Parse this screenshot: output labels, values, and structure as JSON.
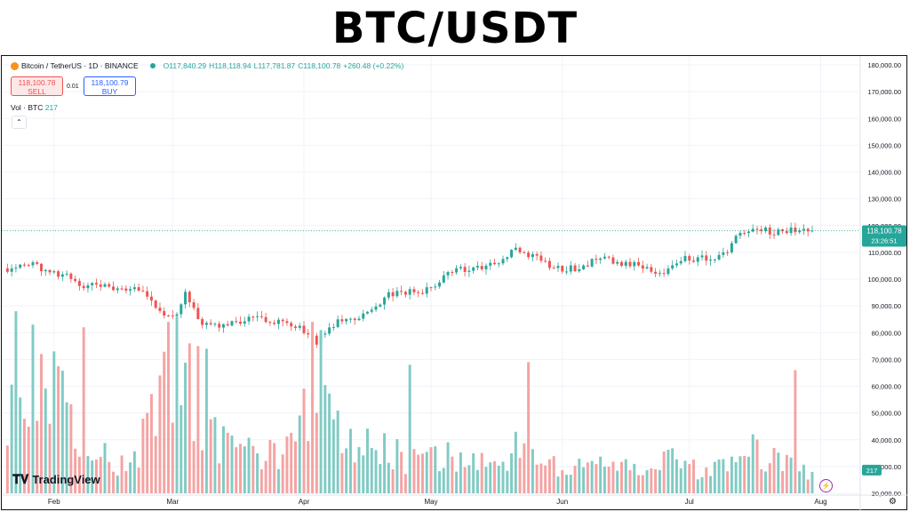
{
  "title": "BTC/USDT",
  "header": {
    "symbol": "Bitcoin / TetherUS · 1D · BINANCE",
    "open": "O117,840.29",
    "high": "H118,118.94",
    "low": "L117,781.87",
    "close": "C118,100.78",
    "change": "+260.48 (+0.22%)"
  },
  "trade": {
    "sell_price": "118,100.78",
    "sell_label": "SELL",
    "spread": "0.01",
    "buy_price": "118,100.79",
    "buy_label": "BUY"
  },
  "volume_label": {
    "name": "Vol · BTC",
    "value": "217"
  },
  "collapse_icon": "chevron-up",
  "branding": {
    "logo_text": "TradingView"
  },
  "price_tag": {
    "price": "118,100.78",
    "countdown": "23:26:51"
  },
  "volume_tag": "217",
  "colors": {
    "up": "#26a69a",
    "down": "#ef5350",
    "vol_up": "#80cbc4",
    "vol_down": "#f5a3a3",
    "accent": "#2962ff"
  },
  "chart_data": {
    "type": "candlestick",
    "title": "BTC/USDT",
    "y_axis": {
      "min": 20000,
      "max": 180000,
      "ticks": [
        "180,000.00",
        "170,000.00",
        "160,000.00",
        "150,000.00",
        "140,000.00",
        "130,000.00",
        "120,000.00",
        "110,000.00",
        "100,000.00",
        "90,000.00",
        "80,000.00",
        "70,000.00",
        "60,000.00",
        "50,000.00",
        "40,000.00",
        "30,000.00",
        "20,000.00"
      ]
    },
    "x_axis": {
      "labels": [
        {
          "label": "Feb",
          "day": 11
        },
        {
          "label": "Mar",
          "day": 39
        },
        {
          "label": "Apr",
          "day": 70
        },
        {
          "label": "May",
          "day": 100
        },
        {
          "label": "Jun",
          "day": 131
        },
        {
          "label": "Jul",
          "day": 161
        },
        {
          "label": "Aug",
          "day": 192
        }
      ],
      "start_date": "2025-01-21",
      "days_shown": 201
    },
    "last_price": 118100.78,
    "price_anchors": [
      {
        "day": 0,
        "price": 104000
      },
      {
        "day": 4,
        "price": 106000
      },
      {
        "day": 10,
        "price": 103000
      },
      {
        "day": 14,
        "price": 101000
      },
      {
        "day": 18,
        "price": 97500
      },
      {
        "day": 25,
        "price": 97000
      },
      {
        "day": 31,
        "price": 96000
      },
      {
        "day": 36,
        "price": 88000
      },
      {
        "day": 40,
        "price": 86000
      },
      {
        "day": 42,
        "price": 94000
      },
      {
        "day": 46,
        "price": 83000
      },
      {
        "day": 52,
        "price": 83000
      },
      {
        "day": 58,
        "price": 86000
      },
      {
        "day": 64,
        "price": 84000
      },
      {
        "day": 70,
        "price": 81000
      },
      {
        "day": 73,
        "price": 76500
      },
      {
        "day": 78,
        "price": 84000
      },
      {
        "day": 84,
        "price": 86000
      },
      {
        "day": 90,
        "price": 94000
      },
      {
        "day": 96,
        "price": 95500
      },
      {
        "day": 100,
        "price": 96000
      },
      {
        "day": 104,
        "price": 103000
      },
      {
        "day": 110,
        "price": 104000
      },
      {
        "day": 115,
        "price": 105000
      },
      {
        "day": 120,
        "price": 111000
      },
      {
        "day": 124,
        "price": 109000
      },
      {
        "day": 129,
        "price": 104000
      },
      {
        "day": 135,
        "price": 104000
      },
      {
        "day": 140,
        "price": 109000
      },
      {
        "day": 145,
        "price": 105500
      },
      {
        "day": 151,
        "price": 105000
      },
      {
        "day": 154,
        "price": 101000
      },
      {
        "day": 158,
        "price": 107000
      },
      {
        "day": 164,
        "price": 108000
      },
      {
        "day": 168,
        "price": 108500
      },
      {
        "day": 170,
        "price": 111000
      },
      {
        "day": 173,
        "price": 118000
      },
      {
        "day": 176,
        "price": 119500
      },
      {
        "day": 180,
        "price": 117500
      },
      {
        "day": 184,
        "price": 118300
      },
      {
        "day": 190,
        "price": 118100
      }
    ],
    "volume_anchors": [
      {
        "day": 0,
        "volume": 24000
      },
      {
        "day": 2,
        "volume": 48000
      },
      {
        "day": 4,
        "volume": 25000
      },
      {
        "day": 8,
        "volume": 28000
      },
      {
        "day": 13,
        "volume": 38000
      },
      {
        "day": 16,
        "volume": 16000
      },
      {
        "day": 20,
        "volume": 18000
      },
      {
        "day": 28,
        "volume": 10000
      },
      {
        "day": 33,
        "volume": 22000
      },
      {
        "day": 37,
        "volume": 48000
      },
      {
        "day": 40,
        "volume": 40000
      },
      {
        "day": 44,
        "volume": 30000
      },
      {
        "day": 50,
        "volume": 18000
      },
      {
        "day": 60,
        "volume": 14000
      },
      {
        "day": 68,
        "volume": 16000
      },
      {
        "day": 72,
        "volume": 40000
      },
      {
        "day": 75,
        "volume": 30000
      },
      {
        "day": 80,
        "volume": 18000
      },
      {
        "day": 88,
        "volume": 16000
      },
      {
        "day": 96,
        "volume": 12000
      },
      {
        "day": 104,
        "volume": 14000
      },
      {
        "day": 112,
        "volume": 12000
      },
      {
        "day": 120,
        "volume": 16000
      },
      {
        "day": 130,
        "volume": 10000
      },
      {
        "day": 140,
        "volume": 11000
      },
      {
        "day": 150,
        "volume": 9000
      },
      {
        "day": 158,
        "volume": 12000
      },
      {
        "day": 166,
        "volume": 7000
      },
      {
        "day": 172,
        "volume": 15000
      },
      {
        "day": 176,
        "volume": 16000
      },
      {
        "day": 182,
        "volume": 12000
      },
      {
        "day": 188,
        "volume": 8000
      },
      {
        "day": 190,
        "volume": 7000
      }
    ],
    "volume_spikes": [
      {
        "day": 2,
        "volume": 68000
      },
      {
        "day": 6,
        "volume": 63000
      },
      {
        "day": 8,
        "volume": 52000
      },
      {
        "day": 11,
        "volume": 53000
      },
      {
        "day": 18,
        "volume": 62000
      },
      {
        "day": 38,
        "volume": 64000
      },
      {
        "day": 40,
        "volume": 66000
      },
      {
        "day": 43,
        "volume": 56000
      },
      {
        "day": 45,
        "volume": 55000
      },
      {
        "day": 47,
        "volume": 54000
      },
      {
        "day": 72,
        "volume": 64000
      },
      {
        "day": 74,
        "volume": 61000
      },
      {
        "day": 95,
        "volume": 48000
      },
      {
        "day": 123,
        "volume": 49000
      },
      {
        "day": 186,
        "volume": 46000
      }
    ]
  }
}
